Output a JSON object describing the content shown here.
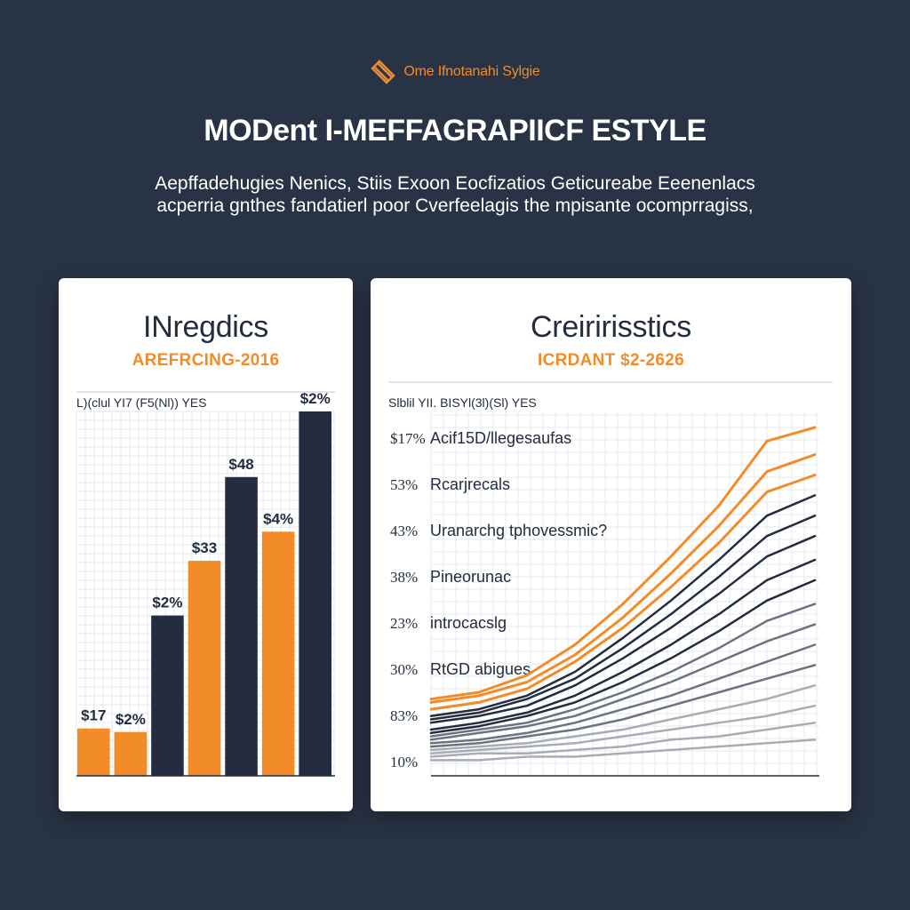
{
  "brand": {
    "text": "Ome Ifnotanahi Sylgie",
    "icon": "stacked-chevron-logo-icon"
  },
  "headline": "MODent I-MEFFAGRAPIICF ESTYLE",
  "subtitle": {
    "line1": "Aepffadehugies Nenics, Stiis Exoon Eocfizatios Geticureabe Eeenenlacs",
    "line2": "acperria gnthes fandatierl poor Cverfeelagis the mpisante ocomprragiss,"
  },
  "colors": {
    "background": "#283345",
    "orange": "#f28c28",
    "navy": "#232d3f",
    "card": "#ffffff"
  },
  "chart_data": [
    {
      "type": "bar",
      "title": "INregdics",
      "subtitle": "AREFRCING-2016",
      "header_label": "L)(clul YI7 (F5(Nl)) YES",
      "grid": true,
      "ylim": [
        0,
        100
      ],
      "bars": [
        {
          "label": "$17",
          "value": 13,
          "color": "orange"
        },
        {
          "label": "$2%",
          "value": 12,
          "color": "orange"
        },
        {
          "label": "$2%",
          "value": 44,
          "color": "navy"
        },
        {
          "label": "$33",
          "value": 59,
          "color": "orange"
        },
        {
          "label": "$48",
          "value": 82,
          "color": "navy"
        },
        {
          "label": "$4%",
          "value": 67,
          "color": "orange"
        },
        {
          "label": "$2%",
          "value": 100,
          "color": "navy"
        }
      ]
    },
    {
      "type": "line",
      "title": "Creiririsstics",
      "subtitle": "ICRDANT $2-2626",
      "header_label": "Slblil YII. BISYl(3l)(Sl) YES",
      "grid": true,
      "ylim": [
        0,
        100
      ],
      "rows": [
        {
          "pct": "$17%",
          "label": "Acif15D/llegesaufas"
        },
        {
          "pct": "53%",
          "label": "Rcarjrecals"
        },
        {
          "pct": "43%",
          "label": "Uranarchg tphovessmic?"
        },
        {
          "pct": "38%",
          "label": "Pineorunac"
        },
        {
          "pct": "23%",
          "label": "introcacslg"
        },
        {
          "pct": "30%",
          "label": "RtGD abigues"
        },
        {
          "pct": "83%",
          "label": ""
        },
        {
          "pct": "10%",
          "label": ""
        }
      ],
      "x": [
        0,
        1,
        2,
        3,
        4,
        5,
        6,
        7,
        8
      ],
      "series": [
        {
          "color": "orange",
          "values": [
            20,
            22,
            27,
            36,
            48,
            62,
            77,
            96,
            100
          ]
        },
        {
          "color": "orange",
          "values": [
            19,
            21,
            25,
            33,
            44,
            57,
            71,
            87,
            92
          ]
        },
        {
          "color": "orange",
          "values": [
            17,
            19,
            23,
            31,
            41,
            53,
            66,
            81,
            86
          ]
        },
        {
          "color": "navy",
          "values": [
            15,
            17,
            21,
            28,
            38,
            49,
            61,
            74,
            80
          ]
        },
        {
          "color": "navy",
          "values": [
            14,
            16,
            20,
            26,
            35,
            45,
            56,
            68,
            74
          ]
        },
        {
          "color": "navy",
          "values": [
            13,
            15,
            18,
            24,
            32,
            41,
            51,
            62,
            68
          ]
        },
        {
          "color": "navy",
          "values": [
            11,
            13,
            16,
            21,
            28,
            36,
            45,
            55,
            61
          ]
        },
        {
          "color": "navy",
          "values": [
            10,
            12,
            15,
            19,
            25,
            32,
            40,
            49,
            55
          ]
        },
        {
          "color": "gray",
          "values": [
            9,
            11,
            13,
            17,
            22,
            28,
            35,
            43,
            48
          ]
        },
        {
          "color": "gray",
          "values": [
            8,
            10,
            12,
            15,
            20,
            25,
            31,
            37,
            42
          ]
        },
        {
          "color": "gray",
          "values": [
            7,
            8,
            10,
            13,
            17,
            21,
            26,
            31,
            36
          ]
        },
        {
          "color": "gray",
          "values": [
            6,
            7,
            9,
            11,
            14,
            18,
            22,
            26,
            30
          ]
        },
        {
          "color": "lightgray",
          "values": [
            5,
            6,
            7,
            9,
            11,
            14,
            17,
            20,
            24
          ]
        },
        {
          "color": "lightgray",
          "values": [
            4,
            5,
            6,
            7,
            9,
            11,
            13,
            15,
            18
          ]
        },
        {
          "color": "lightgray",
          "values": [
            3,
            4,
            4,
            5,
            6,
            8,
            9,
            11,
            13
          ]
        },
        {
          "color": "lightgray",
          "values": [
            2,
            2,
            3,
            3,
            4,
            5,
            6,
            7,
            8
          ]
        }
      ]
    }
  ]
}
